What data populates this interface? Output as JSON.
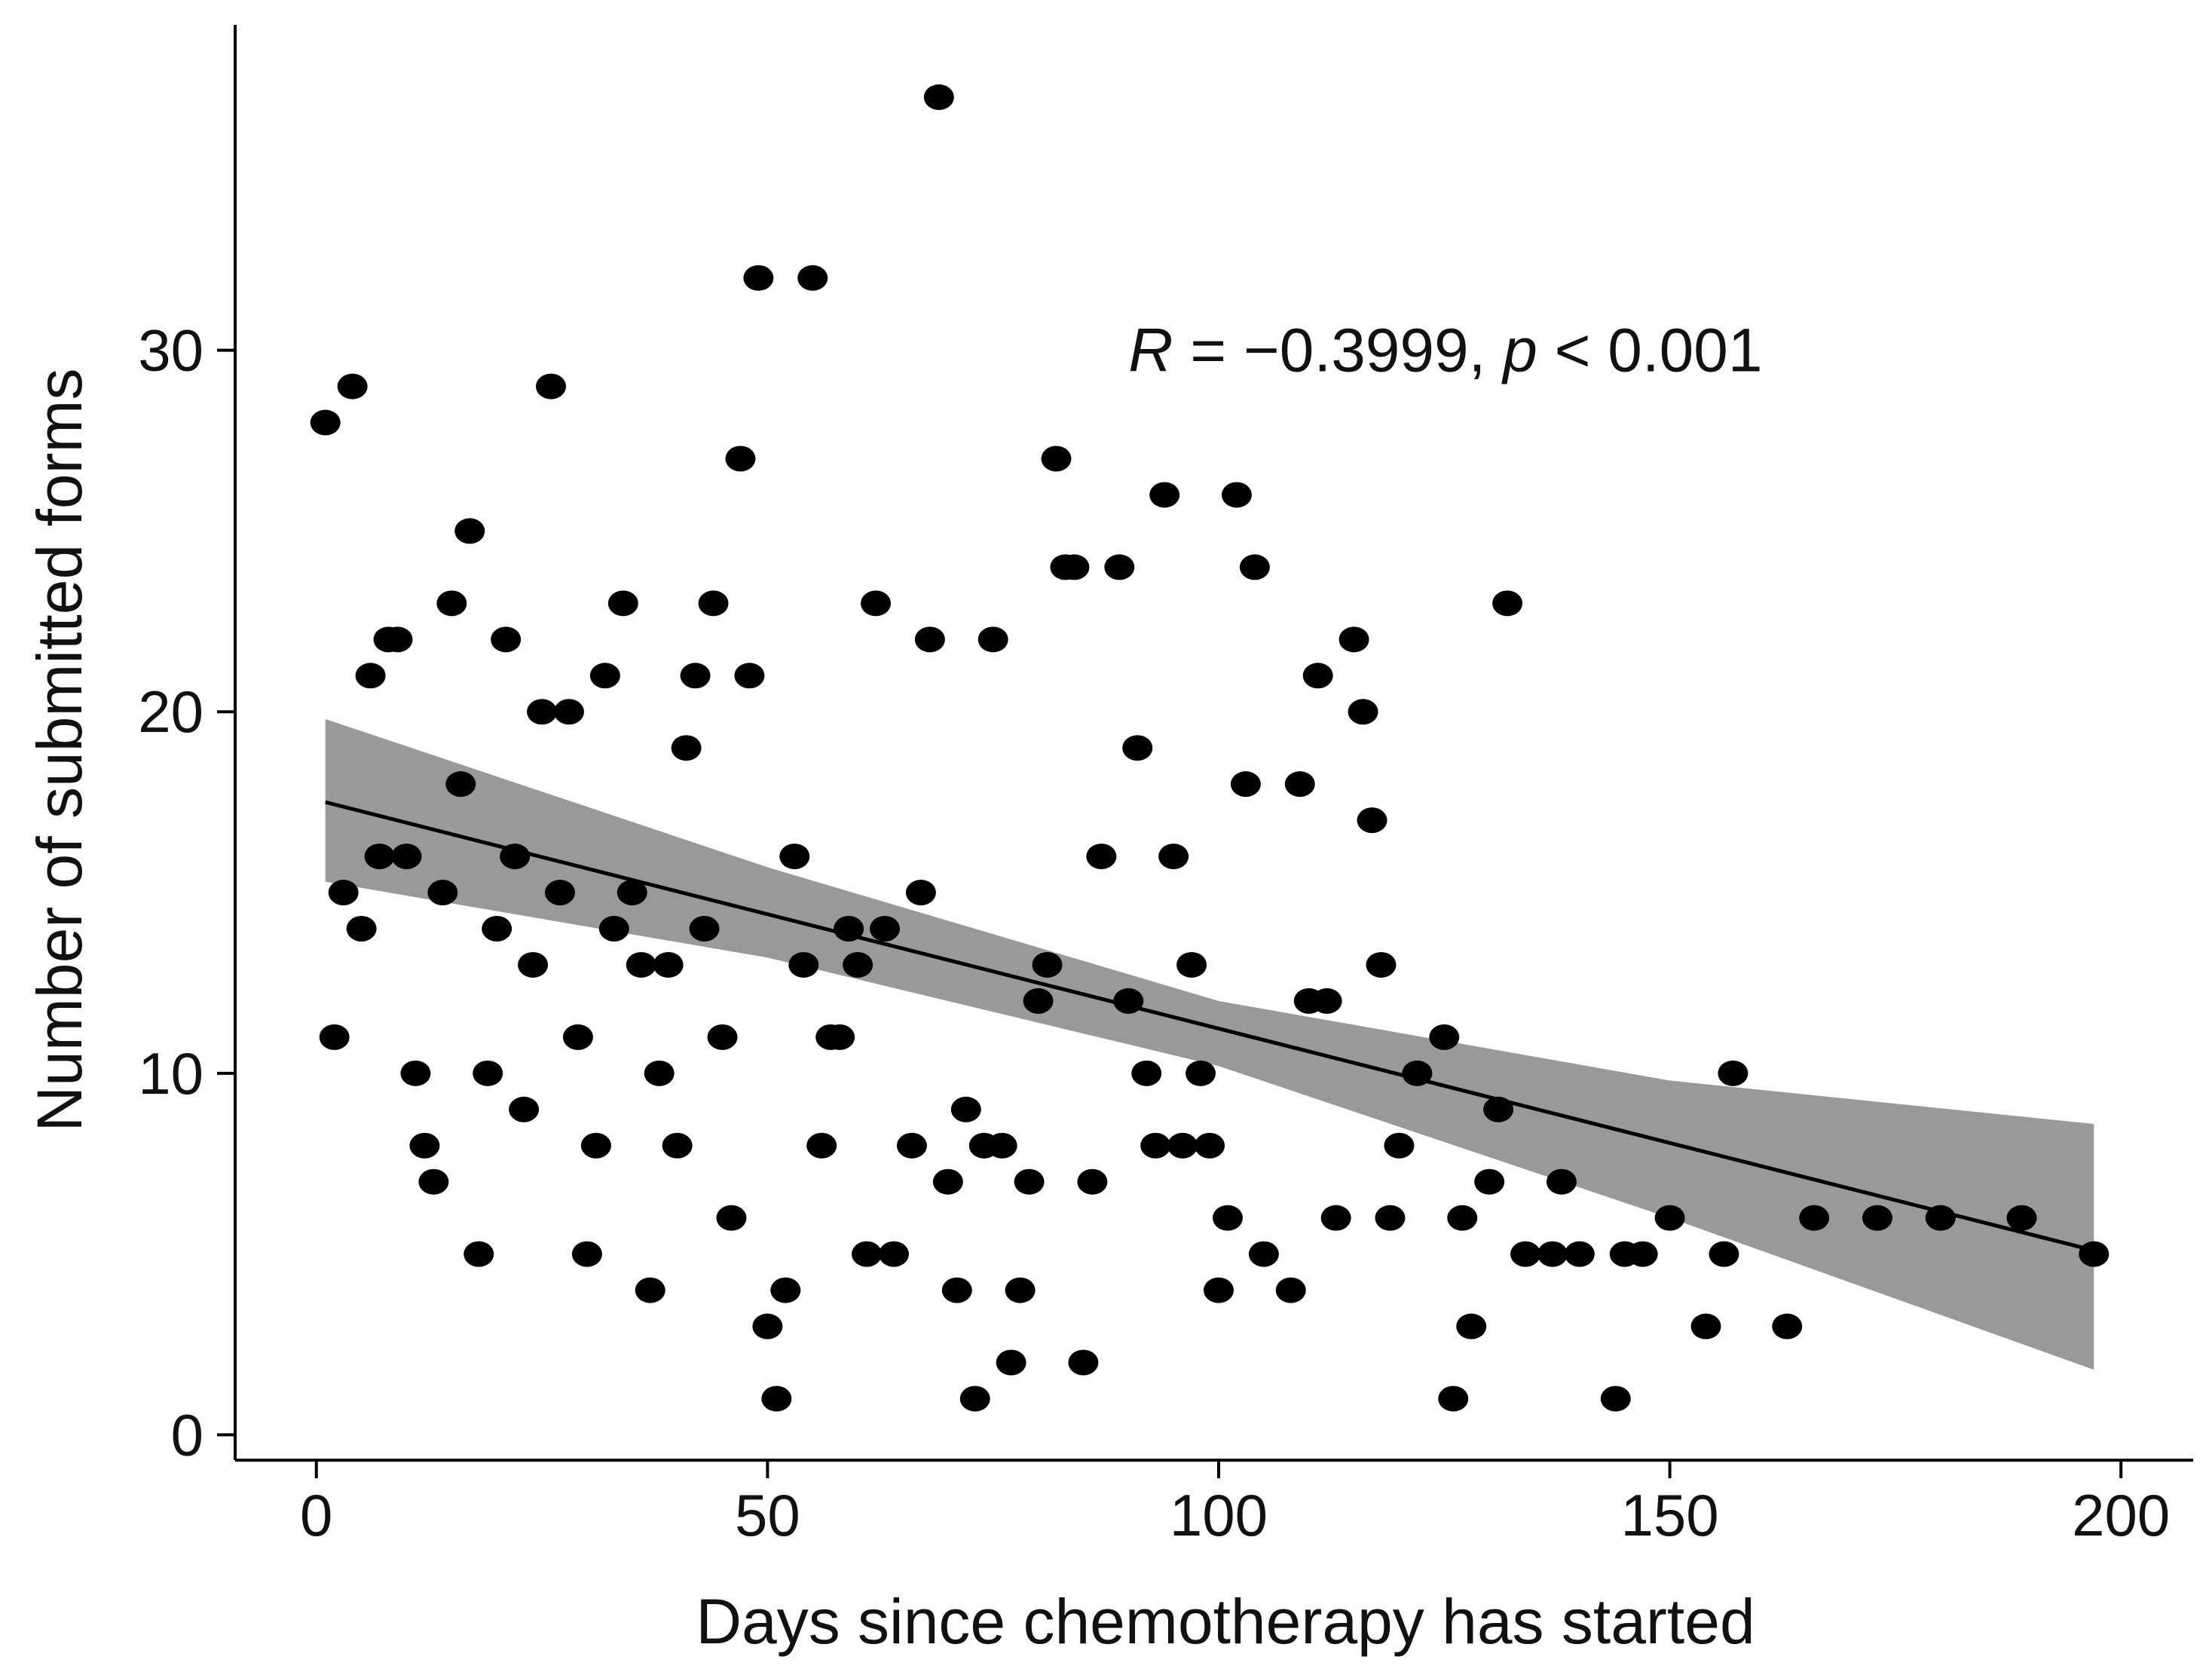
{
  "chart_data": {
    "type": "scatter",
    "title": "",
    "xlabel": "Days since chemotherapy has started",
    "ylabel": "Number of submitted forms",
    "xlim": [
      -9,
      208
    ],
    "ylim": [
      -0.7,
      39
    ],
    "xticks": [
      0,
      50,
      100,
      150,
      200
    ],
    "yticks": [
      0,
      10,
      20,
      30
    ],
    "grid": false,
    "annotation": {
      "r_symbol": "R",
      "r_text": " = −0.3999, ",
      "p_symbol": "p",
      "p_text": " < 0.001",
      "x": 90,
      "y": 30
    },
    "colors": {
      "points": "#000000",
      "fit_line": "#000000",
      "confidence_band": "#999999"
    },
    "points": [
      {
        "x": 1,
        "y": 28
      },
      {
        "x": 2,
        "y": 11
      },
      {
        "x": 3,
        "y": 15
      },
      {
        "x": 4,
        "y": 29
      },
      {
        "x": 5,
        "y": 14
      },
      {
        "x": 6,
        "y": 21
      },
      {
        "x": 7,
        "y": 16
      },
      {
        "x": 8,
        "y": 22
      },
      {
        "x": 9,
        "y": 22
      },
      {
        "x": 10,
        "y": 16
      },
      {
        "x": 11,
        "y": 10
      },
      {
        "x": 12,
        "y": 8
      },
      {
        "x": 13,
        "y": 7
      },
      {
        "x": 14,
        "y": 15
      },
      {
        "x": 15,
        "y": 23
      },
      {
        "x": 16,
        "y": 18
      },
      {
        "x": 17,
        "y": 25
      },
      {
        "x": 18,
        "y": 5
      },
      {
        "x": 19,
        "y": 10
      },
      {
        "x": 20,
        "y": 14
      },
      {
        "x": 21,
        "y": 22
      },
      {
        "x": 22,
        "y": 16
      },
      {
        "x": 23,
        "y": 9
      },
      {
        "x": 24,
        "y": 13
      },
      {
        "x": 25,
        "y": 20
      },
      {
        "x": 26,
        "y": 29
      },
      {
        "x": 27,
        "y": 15
      },
      {
        "x": 28,
        "y": 20
      },
      {
        "x": 29,
        "y": 11
      },
      {
        "x": 30,
        "y": 5
      },
      {
        "x": 31,
        "y": 8
      },
      {
        "x": 32,
        "y": 21
      },
      {
        "x": 33,
        "y": 14
      },
      {
        "x": 34,
        "y": 23
      },
      {
        "x": 35,
        "y": 15
      },
      {
        "x": 36,
        "y": 13
      },
      {
        "x": 37,
        "y": 4
      },
      {
        "x": 38,
        "y": 10
      },
      {
        "x": 39,
        "y": 13
      },
      {
        "x": 40,
        "y": 8
      },
      {
        "x": 41,
        "y": 19
      },
      {
        "x": 42,
        "y": 21
      },
      {
        "x": 43,
        "y": 14
      },
      {
        "x": 44,
        "y": 23
      },
      {
        "x": 45,
        "y": 11
      },
      {
        "x": 46,
        "y": 6
      },
      {
        "x": 47,
        "y": 27
      },
      {
        "x": 48,
        "y": 21
      },
      {
        "x": 49,
        "y": 32
      },
      {
        "x": 50,
        "y": 3
      },
      {
        "x": 51,
        "y": 1
      },
      {
        "x": 52,
        "y": 4
      },
      {
        "x": 53,
        "y": 16
      },
      {
        "x": 54,
        "y": 13
      },
      {
        "x": 55,
        "y": 32
      },
      {
        "x": 56,
        "y": 8
      },
      {
        "x": 57,
        "y": 11
      },
      {
        "x": 58,
        "y": 11
      },
      {
        "x": 59,
        "y": 14
      },
      {
        "x": 60,
        "y": 13
      },
      {
        "x": 61,
        "y": 5
      },
      {
        "x": 62,
        "y": 23
      },
      {
        "x": 63,
        "y": 14
      },
      {
        "x": 64,
        "y": 5
      },
      {
        "x": 66,
        "y": 8
      },
      {
        "x": 67,
        "y": 15
      },
      {
        "x": 68,
        "y": 22
      },
      {
        "x": 69,
        "y": 37
      },
      {
        "x": 70,
        "y": 7
      },
      {
        "x": 71,
        "y": 4
      },
      {
        "x": 72,
        "y": 9
      },
      {
        "x": 73,
        "y": 1
      },
      {
        "x": 74,
        "y": 8
      },
      {
        "x": 75,
        "y": 22
      },
      {
        "x": 76,
        "y": 8
      },
      {
        "x": 77,
        "y": 2
      },
      {
        "x": 78,
        "y": 4
      },
      {
        "x": 79,
        "y": 7
      },
      {
        "x": 80,
        "y": 12
      },
      {
        "x": 81,
        "y": 13
      },
      {
        "x": 82,
        "y": 27
      },
      {
        "x": 83,
        "y": 24
      },
      {
        "x": 84,
        "y": 24
      },
      {
        "x": 85,
        "y": 2
      },
      {
        "x": 86,
        "y": 7
      },
      {
        "x": 87,
        "y": 16
      },
      {
        "x": 89,
        "y": 24
      },
      {
        "x": 90,
        "y": 12
      },
      {
        "x": 91,
        "y": 19
      },
      {
        "x": 92,
        "y": 10
      },
      {
        "x": 93,
        "y": 8
      },
      {
        "x": 94,
        "y": 26
      },
      {
        "x": 95,
        "y": 16
      },
      {
        "x": 96,
        "y": 8
      },
      {
        "x": 97,
        "y": 13
      },
      {
        "x": 98,
        "y": 10
      },
      {
        "x": 99,
        "y": 8
      },
      {
        "x": 100,
        "y": 4
      },
      {
        "x": 101,
        "y": 6
      },
      {
        "x": 102,
        "y": 26
      },
      {
        "x": 103,
        "y": 18
      },
      {
        "x": 104,
        "y": 24
      },
      {
        "x": 105,
        "y": 5
      },
      {
        "x": 108,
        "y": 4
      },
      {
        "x": 109,
        "y": 18
      },
      {
        "x": 110,
        "y": 12
      },
      {
        "x": 111,
        "y": 21
      },
      {
        "x": 112,
        "y": 12
      },
      {
        "x": 113,
        "y": 6
      },
      {
        "x": 115,
        "y": 22
      },
      {
        "x": 116,
        "y": 20
      },
      {
        "x": 117,
        "y": 17
      },
      {
        "x": 118,
        "y": 13
      },
      {
        "x": 119,
        "y": 6
      },
      {
        "x": 120,
        "y": 8
      },
      {
        "x": 122,
        "y": 10
      },
      {
        "x": 125,
        "y": 11
      },
      {
        "x": 126,
        "y": 1
      },
      {
        "x": 127,
        "y": 6
      },
      {
        "x": 128,
        "y": 3
      },
      {
        "x": 130,
        "y": 7
      },
      {
        "x": 131,
        "y": 9
      },
      {
        "x": 132,
        "y": 23
      },
      {
        "x": 134,
        "y": 5
      },
      {
        "x": 137,
        "y": 5
      },
      {
        "x": 138,
        "y": 7
      },
      {
        "x": 140,
        "y": 5
      },
      {
        "x": 144,
        "y": 1
      },
      {
        "x": 145,
        "y": 5
      },
      {
        "x": 147,
        "y": 5
      },
      {
        "x": 150,
        "y": 6
      },
      {
        "x": 154,
        "y": 3
      },
      {
        "x": 156,
        "y": 5
      },
      {
        "x": 157,
        "y": 10
      },
      {
        "x": 163,
        "y": 3
      },
      {
        "x": 166,
        "y": 6
      },
      {
        "x": 173,
        "y": 6
      },
      {
        "x": 180,
        "y": 6
      },
      {
        "x": 189,
        "y": 6
      },
      {
        "x": 197,
        "y": 5
      }
    ],
    "fit_line": {
      "x": [
        1,
        197
      ],
      "y": [
        17.5,
        5.1
      ]
    },
    "confidence_band": {
      "x": [
        1,
        50,
        100,
        150,
        197
      ],
      "lower": [
        15.3,
        13.2,
        10.2,
        6.0,
        1.8
      ],
      "upper": [
        19.8,
        15.7,
        12.0,
        9.8,
        8.6
      ]
    }
  }
}
